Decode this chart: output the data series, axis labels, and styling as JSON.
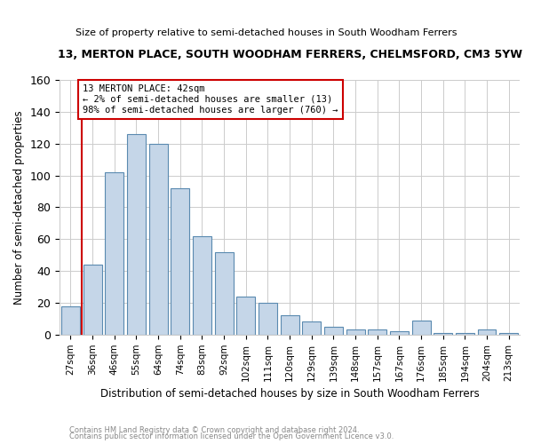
{
  "title": "13, MERTON PLACE, SOUTH WOODHAM FERRERS, CHELMSFORD, CM3 5YW",
  "subtitle": "Size of property relative to semi-detached houses in South Woodham Ferrers",
  "xlabel": "Distribution of semi-detached houses by size in South Woodham Ferrers",
  "ylabel": "Number of semi-detached properties",
  "footnote1": "Contains HM Land Registry data © Crown copyright and database right 2024.",
  "footnote2": "Contains public sector information licensed under the Open Government Licence v3.0.",
  "annotation_title": "13 MERTON PLACE: 42sqm",
  "annotation_line2": "← 2% of semi-detached houses are smaller (13)",
  "annotation_line3": "98% of semi-detached houses are larger (760) →",
  "categories": [
    "27sqm",
    "36sqm",
    "46sqm",
    "55sqm",
    "64sqm",
    "74sqm",
    "83sqm",
    "92sqm",
    "102sqm",
    "111sqm",
    "120sqm",
    "129sqm",
    "139sqm",
    "148sqm",
    "157sqm",
    "167sqm",
    "176sqm",
    "185sqm",
    "194sqm",
    "204sqm",
    "213sqm"
  ],
  "values": [
    18,
    44,
    102,
    126,
    120,
    92,
    62,
    52,
    24,
    20,
    12,
    8,
    5,
    3,
    3,
    2,
    9,
    1,
    1,
    3,
    1
  ],
  "bar_color": "#c5d6e8",
  "bar_edge_color": "#5a8ab0",
  "vline_color": "#cc0000",
  "annotation_box_color": "#cc0000",
  "ylim": [
    0,
    160
  ],
  "yticks": [
    0,
    20,
    40,
    60,
    80,
    100,
    120,
    140,
    160
  ],
  "background_color": "#ffffff",
  "grid_color": "#cccccc"
}
